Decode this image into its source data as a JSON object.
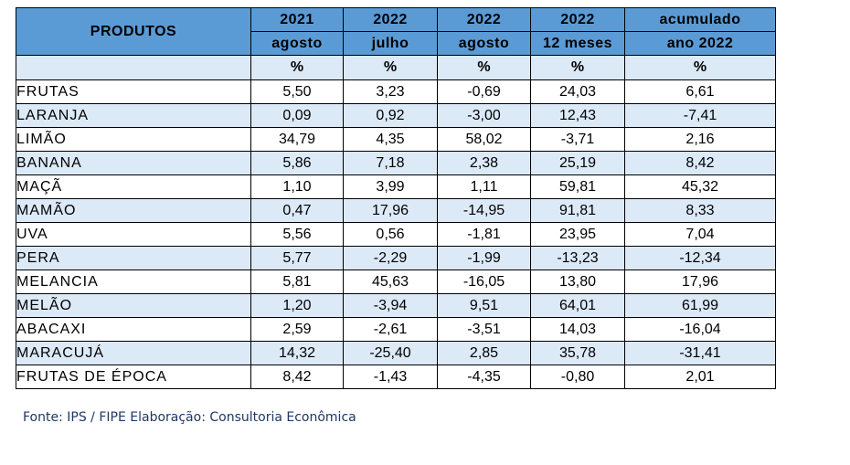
{
  "header": {
    "produtos_label": "PRODUTOS",
    "columns": [
      {
        "line1": "2021",
        "line2": "agosto"
      },
      {
        "line1": "2022",
        "line2": "julho"
      },
      {
        "line1": "2022",
        "line2": "agosto"
      },
      {
        "line1": "2022",
        "line2": "12 meses"
      },
      {
        "line1": "acumulado",
        "line2": "ano 2022"
      }
    ],
    "unit": "%"
  },
  "rows": [
    {
      "name": "FRUTAS",
      "values": [
        "5,50",
        "3,23",
        "-0,69",
        "24,03",
        "6,61"
      ]
    },
    {
      "name": "LARANJA",
      "values": [
        "0,09",
        "0,92",
        "-3,00",
        "12,43",
        "-7,41"
      ]
    },
    {
      "name": "LIMÃO",
      "values": [
        "34,79",
        "4,35",
        "58,02",
        "-3,71",
        "2,16"
      ]
    },
    {
      "name": "BANANA",
      "values": [
        "5,86",
        "7,18",
        "2,38",
        "25,19",
        "8,42"
      ]
    },
    {
      "name": "MAÇÃ",
      "values": [
        "1,10",
        "3,99",
        "1,11",
        "59,81",
        "45,32"
      ]
    },
    {
      "name": "MAMÃO",
      "values": [
        "0,47",
        "17,96",
        "-14,95",
        "91,81",
        "8,33"
      ]
    },
    {
      "name": "UVA",
      "values": [
        "5,56",
        "0,56",
        "-1,81",
        "23,95",
        "7,04"
      ]
    },
    {
      "name": "PERA",
      "values": [
        "5,77",
        "-2,29",
        "-1,99",
        "-13,23",
        "-12,34"
      ]
    },
    {
      "name": "MELANCIA",
      "values": [
        "5,81",
        "45,63",
        "-16,05",
        "13,80",
        "17,96"
      ]
    },
    {
      "name": "MELÃO",
      "values": [
        "1,20",
        "-3,94",
        "9,51",
        "64,01",
        "61,99"
      ]
    },
    {
      "name": "ABACAXI",
      "values": [
        "2,59",
        "-2,61",
        "-3,51",
        "14,03",
        "-16,04"
      ]
    },
    {
      "name": "MARACUJÁ",
      "values": [
        "14,32",
        "-25,40",
        "2,85",
        "35,78",
        "-31,41"
      ]
    },
    {
      "name": "FRUTAS DE ÉPOCA",
      "values": [
        "8,42",
        "-1,43",
        "-4,35",
        "-0,80",
        "2,01"
      ]
    }
  ],
  "source_note": "Fonte: IPS / FIPE  Elaboração: Consultoria Econômica",
  "colors": {
    "header_bg": "#5b9bd5",
    "alt_row_bg": "#dce9f7",
    "note_text": "#1f3864"
  }
}
